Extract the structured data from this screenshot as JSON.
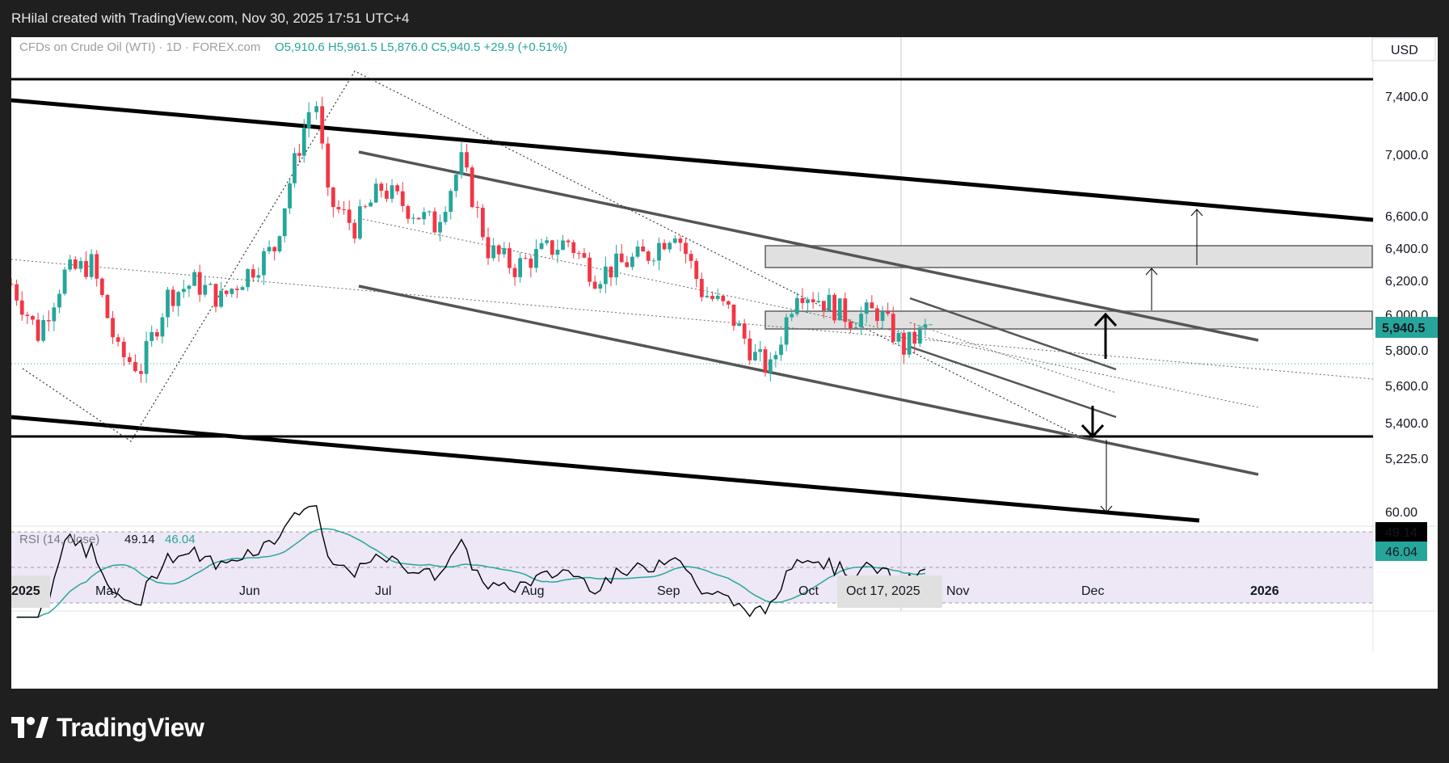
{
  "header": {
    "credit": "RHilal created with TradingView.com, Nov 30, 2025 17:51 UTC+4"
  },
  "brand": {
    "name": "TradingView"
  },
  "legend": {
    "symbol": "CFDs on Crude Oil (WTI) · 1D · FOREX.com",
    "ohlc": "O5,910.6  H5,961.5  L5,876.0  C5,940.5  +29.9 (+0.51%)"
  },
  "currency": "USD",
  "price_axis": {
    "ticks": [
      "7,400.0",
      "7,000.0",
      "6,600.0",
      "6,400.0",
      "6,200.0",
      "6,000.0",
      "5,800.0",
      "5,600.0",
      "5,400.0",
      "5,225.0"
    ],
    "last_price_label": "5,940.5"
  },
  "rsi": {
    "title": "RSI (14, close)",
    "value": "49.14",
    "ma_value": "46.04",
    "axis_tick": "60.00"
  },
  "time_axis": {
    "labels": [
      "2025",
      "May",
      "Jun",
      "Jul",
      "Aug",
      "Sep",
      "Oct",
      "Nov",
      "Dec",
      "2026"
    ],
    "crosshair_label": "Oct 17, 2025"
  },
  "colors": {
    "up": "#26a69a",
    "down": "#f23645",
    "rsi_line": "#000000",
    "rsi_ma": "#26a69a",
    "rsi_band": "#ede7f6",
    "zone": "#e0e0e0"
  },
  "chart_data": [
    {
      "type": "candlestick",
      "interval": "1D",
      "ylim": [
        5100,
        7650
      ],
      "scale": "log",
      "last_close": 5940.5,
      "x_range": [
        "2025-04-01",
        "2026-01-31"
      ],
      "close_series": [
        [
          "2025-04-01",
          6180
        ],
        [
          "2025-04-08",
          5890
        ],
        [
          "2025-04-15",
          6240
        ],
        [
          "2025-04-22",
          6300
        ],
        [
          "2025-04-29",
          5780
        ],
        [
          "2025-05-05",
          5700
        ],
        [
          "2025-05-12",
          6110
        ],
        [
          "2025-05-19",
          6190
        ],
        [
          "2025-05-26",
          6090
        ],
        [
          "2025-06-02",
          6250
        ],
        [
          "2025-06-09",
          6400
        ],
        [
          "2025-06-13",
          6820
        ],
        [
          "2025-06-18",
          7300
        ],
        [
          "2025-06-20",
          7350
        ],
        [
          "2025-06-23",
          6700
        ],
        [
          "2025-06-30",
          6530
        ],
        [
          "2025-07-07",
          6780
        ],
        [
          "2025-07-14",
          6650
        ],
        [
          "2025-07-21",
          6540
        ],
        [
          "2025-07-28",
          6950
        ],
        [
          "2025-08-04",
          6390
        ],
        [
          "2025-08-11",
          6280
        ],
        [
          "2025-08-18",
          6370
        ],
        [
          "2025-08-25",
          6440
        ],
        [
          "2025-09-01",
          6230
        ],
        [
          "2025-09-08",
          6300
        ],
        [
          "2025-09-15",
          6360
        ],
        [
          "2025-09-22",
          6520
        ],
        [
          "2025-09-29",
          6140
        ],
        [
          "2025-10-06",
          6020
        ],
        [
          "2025-10-13",
          5760
        ],
        [
          "2025-10-17",
          5690
        ],
        [
          "2025-10-24",
          6160
        ],
        [
          "2025-10-31",
          6080
        ],
        [
          "2025-11-07",
          5980
        ],
        [
          "2025-11-14",
          6020
        ],
        [
          "2025-11-21",
          5810
        ],
        [
          "2025-11-28",
          5940.5
        ]
      ],
      "horizontal_levels": [
        7580,
        5530
      ],
      "zones": [
        [
          6540,
          6640
        ],
        [
          6160,
          6260
        ]
      ]
    },
    {
      "type": "line",
      "title": "RSI (14, close)",
      "series": [
        {
          "name": "RSI",
          "last": 49.14
        },
        {
          "name": "RSI-based MA",
          "last": 46.04
        }
      ],
      "ticks": [
        60.0
      ]
    }
  ]
}
